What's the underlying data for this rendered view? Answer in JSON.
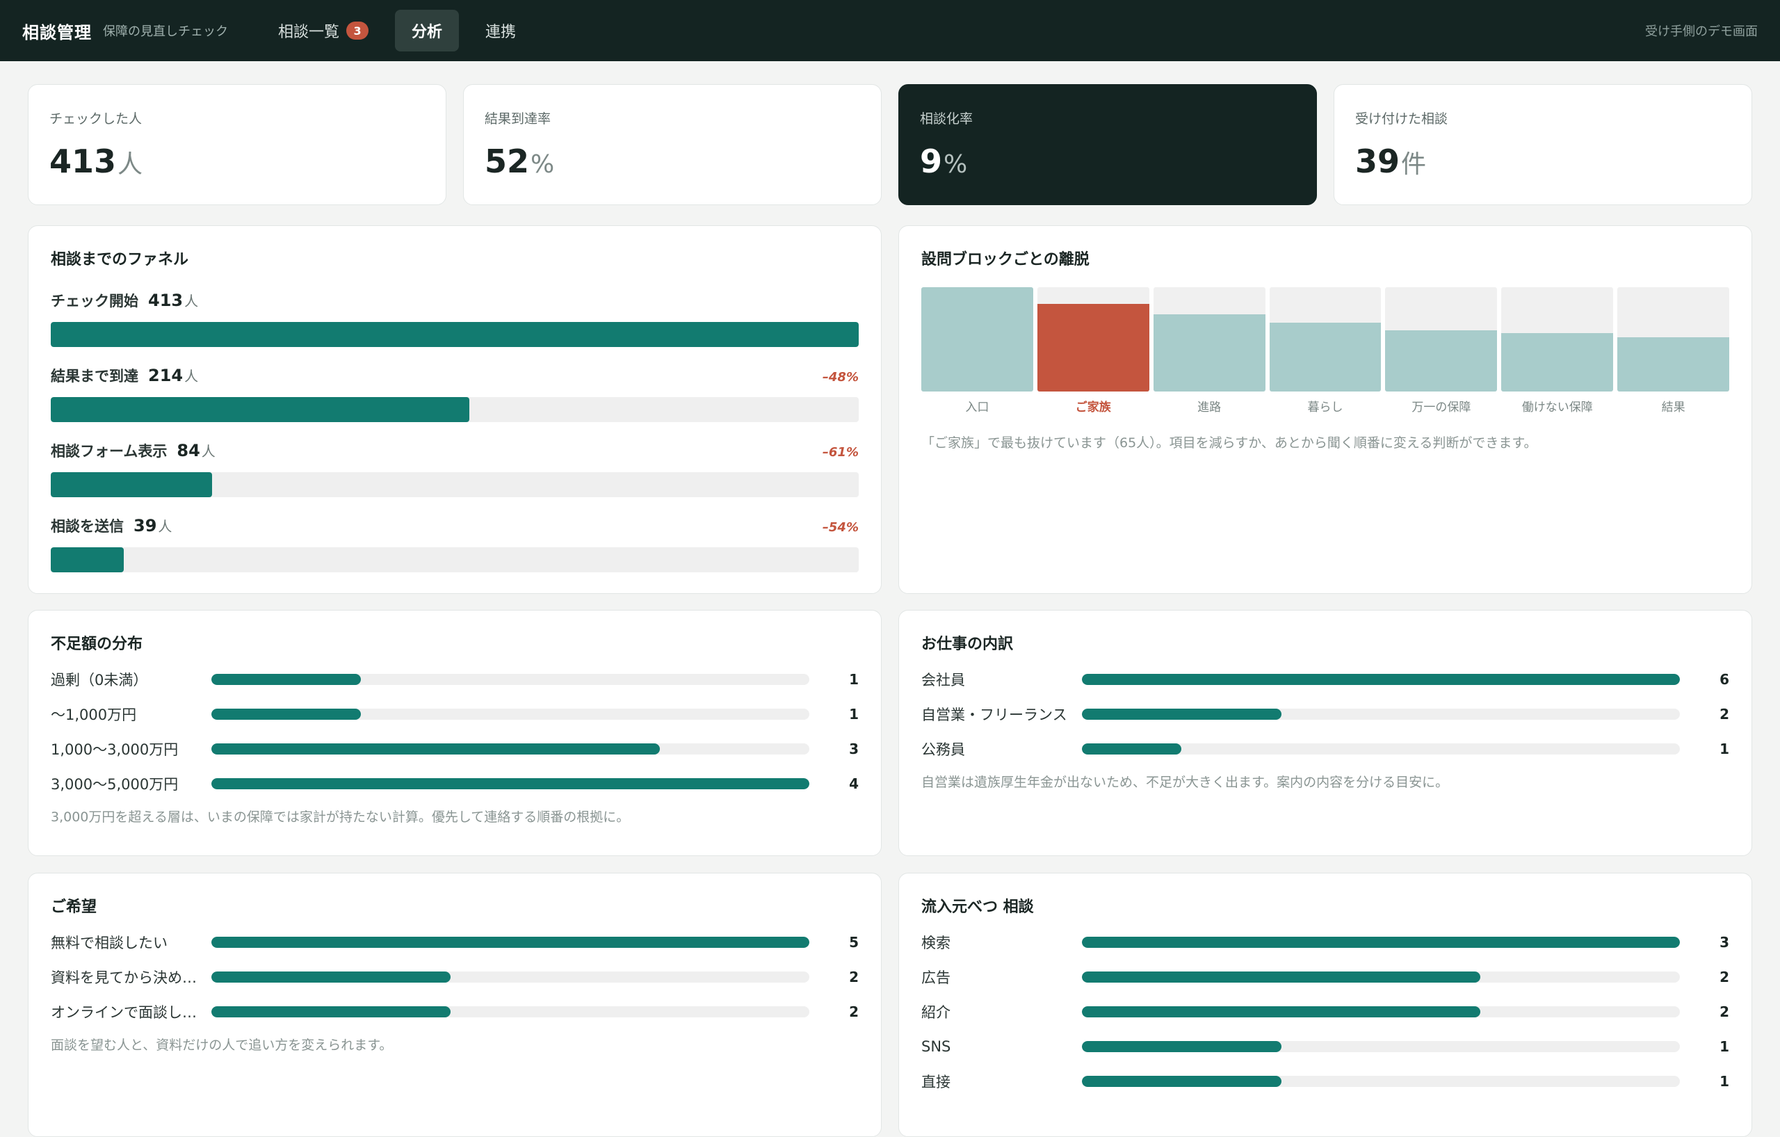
{
  "header": {
    "title": "相談管理",
    "subtitle": "保障の見直しチェック",
    "nav": [
      {
        "label": "相談一覧",
        "badge": "3"
      },
      {
        "label": "分析"
      },
      {
        "label": "連携"
      }
    ],
    "demo_link": "受け手側のデモ画面"
  },
  "kpis": [
    {
      "label": "チェックした人",
      "value": "413",
      "unit": "人"
    },
    {
      "label": "結果到達率",
      "value": "52",
      "unit": "%"
    },
    {
      "label": "相談化率",
      "value": "9",
      "unit": "%"
    },
    {
      "label": "受け付けた相談",
      "value": "39",
      "unit": "件"
    }
  ],
  "funnel": {
    "title": "相談までのファネル",
    "unit": "人",
    "steps": [
      {
        "label": "チェック開始",
        "count": "413",
        "fraction": 1.0,
        "drop": ""
      },
      {
        "label": "結果まで到達",
        "count": "214",
        "fraction": 0.518,
        "drop": "–48%"
      },
      {
        "label": "相談フォーム表示",
        "count": "84",
        "fraction": 0.2,
        "drop": "–61%"
      },
      {
        "label": "相談を送信",
        "count": "39",
        "fraction": 0.09,
        "drop": "–54%"
      }
    ]
  },
  "dropout": {
    "title": "設問ブロックごとの離脱",
    "blocks": [
      {
        "label": "入口",
        "level": 1.0,
        "highlight": false
      },
      {
        "label": "ご家族",
        "level": 0.84,
        "highlight": true
      },
      {
        "label": "進路",
        "level": 0.74,
        "highlight": false
      },
      {
        "label": "暮らし",
        "level": 0.66,
        "highlight": false
      },
      {
        "label": "万一の保障",
        "level": 0.59,
        "highlight": false
      },
      {
        "label": "働けない保障",
        "level": 0.56,
        "highlight": false
      },
      {
        "label": "結果",
        "level": 0.52,
        "highlight": false
      }
    ],
    "note": "「ご家族」で最も抜けています（65人）。項目を減らすか、あとから聞く順番に変える判断ができます。"
  },
  "shortfall": {
    "title": "不足額の分布",
    "max": 4,
    "rows": [
      {
        "label": "過剰（0未満）",
        "value": 1
      },
      {
        "label": "〜1,000万円",
        "value": 1
      },
      {
        "label": "1,000〜3,000万円",
        "value": 3
      },
      {
        "label": "3,000〜5,000万円",
        "value": 4
      }
    ],
    "note": "3,000万円を超える層は、いまの保障では家計が持たない計算。優先して連絡する順番の根拠に。"
  },
  "jobs": {
    "title": "お仕事の内訳",
    "max": 6,
    "rows": [
      {
        "label": "会社員",
        "value": 6
      },
      {
        "label": "自営業・フリーランス",
        "value": 2
      },
      {
        "label": "公務員",
        "value": 1
      }
    ],
    "note": "自営業は遺族厚生年金が出ないため、不足が大きく出ます。案内の内容を分ける目安に。"
  },
  "wishes": {
    "title": "ご希望",
    "max": 5,
    "rows": [
      {
        "label": "無料で相談したい",
        "value": 5
      },
      {
        "label": "資料を見てから決め…",
        "value": 2
      },
      {
        "label": "オンラインで面談し…",
        "value": 2
      }
    ],
    "note": "面談を望む人と、資料だけの人で追い方を変えられます。"
  },
  "sources": {
    "title": "流入元べつ 相談",
    "max": 3,
    "rows": [
      {
        "label": "検索",
        "value": 3
      },
      {
        "label": "広告",
        "value": 2
      },
      {
        "label": "紹介",
        "value": 2
      },
      {
        "label": "SNS",
        "value": 1
      },
      {
        "label": "直接",
        "value": 1
      }
    ]
  },
  "colors": {
    "accent": "#127b70",
    "highlight": "#c4553e",
    "header": "#142422"
  }
}
